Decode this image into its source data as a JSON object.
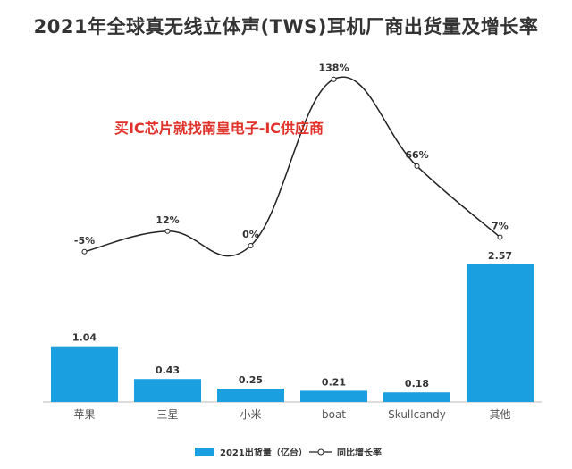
{
  "chart_data": {
    "type": "bar",
    "title": "2021年全球真无线立体声(TWS)耳机厂商出货量及增长率",
    "categories": [
      "苹果",
      "三星",
      "小米",
      "boat",
      "Skullcandy",
      "其他"
    ],
    "series": [
      {
        "name": "2021出货量（亿台）",
        "type": "bar",
        "values": [
          1.04,
          0.43,
          0.25,
          0.21,
          0.18,
          2.57
        ],
        "value_labels": [
          "1.04",
          "0.43",
          "0.25",
          "0.21",
          "0.18",
          "2.57"
        ],
        "color": "#1a9fe0"
      },
      {
        "name": "同比增长率",
        "type": "line",
        "values": [
          -5,
          12,
          0,
          138,
          66,
          7
        ],
        "value_labels": [
          "-5%",
          "12%",
          "0%",
          "138%",
          "66%",
          "7%"
        ],
        "color": "#222222"
      }
    ],
    "legend_position": "bottom-center",
    "grid": false
  },
  "watermark": "买IC芯片就找南皇电子-IC供应商"
}
